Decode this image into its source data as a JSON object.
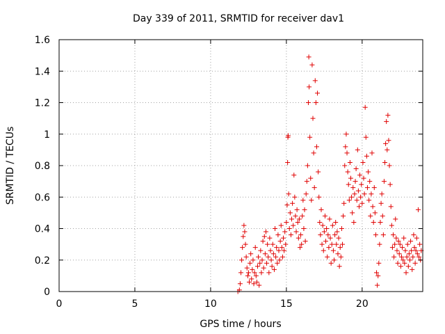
{
  "chart_data": {
    "type": "scatter",
    "title": "Day 339 of 2011, SRMTID for receiver dav1",
    "xlabel": "GPS time / hours",
    "ylabel": "SRMTID / TECUs",
    "xlim": [
      0,
      24
    ],
    "ylim": [
      0,
      1.6
    ],
    "xticks": [
      0,
      5,
      10,
      15,
      20
    ],
    "xtick_labels": [
      "0",
      "5",
      "10",
      "15",
      "20"
    ],
    "yticks": [
      0,
      0.2,
      0.4,
      0.6,
      0.8,
      1.0,
      1.2,
      1.4,
      1.6
    ],
    "ytick_labels": [
      "0",
      "0.2",
      "0.4",
      "0.6",
      "0.8",
      "1",
      "1.2",
      "1.4",
      "1.6"
    ],
    "grid": true,
    "marker": "+",
    "color": "#e00000",
    "series": [
      {
        "name": "dav1",
        "points": [
          [
            11.8,
            0.0
          ],
          [
            11.9,
            0.01
          ],
          [
            11.95,
            0.05
          ],
          [
            12.0,
            0.12
          ],
          [
            12.05,
            0.2
          ],
          [
            12.1,
            0.28
          ],
          [
            12.15,
            0.35
          ],
          [
            12.2,
            0.42
          ],
          [
            12.25,
            0.38
          ],
          [
            12.3,
            0.3
          ],
          [
            12.35,
            0.22
          ],
          [
            12.4,
            0.15
          ],
          [
            12.45,
            0.1
          ],
          [
            12.5,
            0.12
          ],
          [
            12.55,
            0.06
          ],
          [
            12.6,
            0.18
          ],
          [
            12.65,
            0.24
          ],
          [
            12.7,
            0.08
          ],
          [
            12.75,
            0.14
          ],
          [
            12.8,
            0.2
          ],
          [
            12.85,
            0.05
          ],
          [
            12.9,
            0.12
          ],
          [
            12.95,
            0.28
          ],
          [
            13.0,
            0.1
          ],
          [
            13.05,
            0.06
          ],
          [
            13.1,
            0.16
          ],
          [
            13.15,
            0.22
          ],
          [
            13.2,
            0.04
          ],
          [
            13.25,
            0.18
          ],
          [
            13.3,
            0.26
          ],
          [
            13.35,
            0.12
          ],
          [
            13.4,
            0.2
          ],
          [
            13.45,
            0.32
          ],
          [
            13.5,
            0.15
          ],
          [
            13.55,
            0.35
          ],
          [
            13.6,
            0.24
          ],
          [
            13.65,
            0.38
          ],
          [
            13.7,
            0.18
          ],
          [
            13.75,
            0.3
          ],
          [
            13.8,
            0.22
          ],
          [
            13.85,
            0.12
          ],
          [
            13.9,
            0.34
          ],
          [
            13.95,
            0.26
          ],
          [
            14.0,
            0.2
          ],
          [
            14.05,
            0.16
          ],
          [
            14.1,
            0.3
          ],
          [
            14.15,
            0.24
          ],
          [
            14.2,
            0.14
          ],
          [
            14.25,
            0.4
          ],
          [
            14.3,
            0.22
          ],
          [
            14.35,
            0.28
          ],
          [
            14.4,
            0.18
          ],
          [
            14.45,
            0.36
          ],
          [
            14.5,
            0.26
          ],
          [
            14.55,
            0.2
          ],
          [
            14.6,
            0.32
          ],
          [
            14.65,
            0.42
          ],
          [
            14.7,
            0.28
          ],
          [
            14.75,
            0.22
          ],
          [
            14.8,
            0.34
          ],
          [
            14.85,
            0.26
          ],
          [
            14.9,
            0.38
          ],
          [
            14.95,
            0.3
          ],
          [
            15.0,
            0.44
          ],
          [
            15.05,
            0.55
          ],
          [
            15.08,
            0.82
          ],
          [
            15.1,
            0.98
          ],
          [
            15.12,
            0.99
          ],
          [
            15.15,
            0.62
          ],
          [
            15.2,
            0.4
          ],
          [
            15.25,
            0.5
          ],
          [
            15.3,
            0.36
          ],
          [
            15.35,
            0.46
          ],
          [
            15.4,
            0.56
          ],
          [
            15.45,
            0.42
          ],
          [
            15.5,
            0.74
          ],
          [
            15.55,
            0.6
          ],
          [
            15.6,
            0.48
          ],
          [
            15.65,
            0.38
          ],
          [
            15.7,
            0.52
          ],
          [
            15.75,
            0.44
          ],
          [
            15.8,
            0.34
          ],
          [
            15.85,
            0.46
          ],
          [
            15.9,
            0.28
          ],
          [
            15.95,
            0.36
          ],
          [
            16.0,
            0.3
          ],
          [
            16.05,
            0.48
          ],
          [
            16.1,
            0.58
          ],
          [
            16.15,
            0.4
          ],
          [
            16.2,
            0.52
          ],
          [
            16.25,
            0.32
          ],
          [
            16.3,
            0.62
          ],
          [
            16.35,
            0.7
          ],
          [
            16.4,
            0.8
          ],
          [
            16.45,
            1.2
          ],
          [
            16.48,
            1.49
          ],
          [
            16.5,
            1.3
          ],
          [
            16.55,
            0.98
          ],
          [
            16.6,
            0.72
          ],
          [
            16.65,
            0.58
          ],
          [
            16.7,
            1.44
          ],
          [
            16.75,
            1.1
          ],
          [
            16.8,
            0.88
          ],
          [
            16.85,
            0.66
          ],
          [
            16.9,
            1.34
          ],
          [
            16.95,
            1.2
          ],
          [
            17.0,
            0.92
          ],
          [
            17.05,
            1.26
          ],
          [
            17.1,
            0.76
          ],
          [
            17.15,
            0.6
          ],
          [
            17.2,
            0.44
          ],
          [
            17.25,
            0.36
          ],
          [
            17.3,
            0.52
          ],
          [
            17.35,
            0.3
          ],
          [
            17.4,
            0.42
          ],
          [
            17.45,
            0.26
          ],
          [
            17.5,
            0.38
          ],
          [
            17.55,
            0.48
          ],
          [
            17.6,
            0.32
          ],
          [
            17.65,
            0.4
          ],
          [
            17.7,
            0.22
          ],
          [
            17.75,
            0.36
          ],
          [
            17.8,
            0.28
          ],
          [
            17.85,
            0.46
          ],
          [
            17.9,
            0.34
          ],
          [
            17.95,
            0.18
          ],
          [
            18.0,
            0.3
          ],
          [
            18.05,
            0.42
          ],
          [
            18.1,
            0.26
          ],
          [
            18.15,
            0.2
          ],
          [
            18.2,
            0.36
          ],
          [
            18.25,
            0.44
          ],
          [
            18.3,
            0.3
          ],
          [
            18.35,
            0.38
          ],
          [
            18.4,
            0.24
          ],
          [
            18.45,
            0.34
          ],
          [
            18.5,
            0.16
          ],
          [
            18.55,
            0.28
          ],
          [
            18.6,
            0.22
          ],
          [
            18.65,
            0.4
          ],
          [
            18.7,
            0.3
          ],
          [
            18.75,
            0.48
          ],
          [
            18.8,
            0.56
          ],
          [
            18.85,
            0.8
          ],
          [
            18.9,
            0.92
          ],
          [
            18.95,
            1.0
          ],
          [
            19.0,
            0.88
          ],
          [
            19.05,
            0.76
          ],
          [
            19.1,
            0.68
          ],
          [
            19.15,
            0.58
          ],
          [
            19.2,
            0.82
          ],
          [
            19.25,
            0.72
          ],
          [
            19.3,
            0.6
          ],
          [
            19.35,
            0.5
          ],
          [
            19.4,
            0.66
          ],
          [
            19.45,
            0.44
          ],
          [
            19.5,
            0.62
          ],
          [
            19.55,
            0.7
          ],
          [
            19.6,
            0.78
          ],
          [
            19.65,
            0.58
          ],
          [
            19.7,
            0.9
          ],
          [
            19.75,
            0.64
          ],
          [
            19.8,
            0.54
          ],
          [
            19.85,
            0.74
          ],
          [
            19.9,
            0.6
          ],
          [
            19.95,
            0.68
          ],
          [
            20.0,
            0.56
          ],
          [
            20.05,
            0.82
          ],
          [
            20.1,
            0.72
          ],
          [
            20.15,
            0.62
          ],
          [
            20.2,
            1.17
          ],
          [
            20.25,
            0.98
          ],
          [
            20.3,
            0.86
          ],
          [
            20.35,
            0.66
          ],
          [
            20.4,
            0.76
          ],
          [
            20.45,
            0.58
          ],
          [
            20.5,
            0.7
          ],
          [
            20.55,
            0.48
          ],
          [
            20.6,
            0.62
          ],
          [
            20.65,
            0.88
          ],
          [
            20.7,
            0.54
          ],
          [
            20.75,
            0.44
          ],
          [
            20.8,
            0.66
          ],
          [
            20.85,
            0.5
          ],
          [
            20.9,
            0.36
          ],
          [
            20.95,
            0.12
          ],
          [
            21.0,
            0.04
          ],
          [
            21.05,
            0.1
          ],
          [
            21.1,
            0.18
          ],
          [
            21.15,
            0.3
          ],
          [
            21.2,
            0.44
          ],
          [
            21.25,
            0.56
          ],
          [
            21.3,
            0.62
          ],
          [
            21.35,
            0.48
          ],
          [
            21.4,
            0.36
          ],
          [
            21.45,
            0.7
          ],
          [
            21.5,
            0.82
          ],
          [
            21.55,
            0.94
          ],
          [
            21.6,
            1.08
          ],
          [
            21.65,
            0.9
          ],
          [
            21.7,
            1.12
          ],
          [
            21.75,
            0.96
          ],
          [
            21.8,
            0.8
          ],
          [
            21.85,
            0.68
          ],
          [
            21.9,
            0.54
          ],
          [
            21.95,
            0.42
          ],
          [
            22.0,
            0.28
          ],
          [
            22.05,
            0.36
          ],
          [
            22.1,
            0.22
          ],
          [
            22.15,
            0.3
          ],
          [
            22.2,
            0.46
          ],
          [
            22.25,
            0.34
          ],
          [
            22.3,
            0.26
          ],
          [
            22.35,
            0.18
          ],
          [
            22.4,
            0.32
          ],
          [
            22.45,
            0.24
          ],
          [
            22.5,
            0.3
          ],
          [
            22.55,
            0.16
          ],
          [
            22.6,
            0.22
          ],
          [
            22.65,
            0.28
          ],
          [
            22.7,
            0.2
          ],
          [
            22.75,
            0.34
          ],
          [
            22.8,
            0.18
          ],
          [
            22.85,
            0.26
          ],
          [
            22.9,
            0.12
          ],
          [
            22.95,
            0.22
          ],
          [
            23.0,
            0.3
          ],
          [
            23.05,
            0.16
          ],
          [
            23.1,
            0.24
          ],
          [
            23.15,
            0.2
          ],
          [
            23.2,
            0.32
          ],
          [
            23.25,
            0.26
          ],
          [
            23.3,
            0.14
          ],
          [
            23.35,
            0.22
          ],
          [
            23.4,
            0.36
          ],
          [
            23.45,
            0.28
          ],
          [
            23.5,
            0.18
          ],
          [
            23.55,
            0.26
          ],
          [
            23.6,
            0.34
          ],
          [
            23.65,
            0.24
          ],
          [
            23.7,
            0.52
          ],
          [
            23.75,
            0.22
          ],
          [
            23.8,
            0.3
          ],
          [
            23.85,
            0.2
          ],
          [
            23.9,
            0.26
          ]
        ]
      }
    ]
  }
}
